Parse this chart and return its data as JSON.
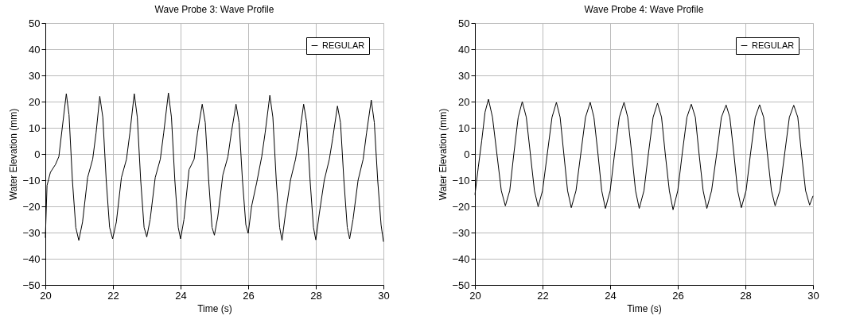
{
  "chart_data": [
    {
      "type": "line",
      "title": "Wave Probe 3: Wave Profile",
      "xlabel": "Time (s)",
      "ylabel": "Water Elevation (mm)",
      "xlim": [
        20,
        30
      ],
      "ylim": [
        -50,
        50
      ],
      "xticks": [
        20,
        22,
        24,
        26,
        28,
        30
      ],
      "yticks": [
        -50,
        -40,
        -30,
        -20,
        -10,
        0,
        10,
        20,
        30,
        40,
        50
      ],
      "grid": true,
      "legend": "top right",
      "series": [
        {
          "name": "REGULAR",
          "color": "#000000",
          "x": [
            20.0,
            20.05,
            20.15,
            20.3,
            20.4,
            20.5,
            20.62,
            20.7,
            20.8,
            20.9,
            20.99,
            21.1,
            21.25,
            21.4,
            21.5,
            21.61,
            21.7,
            21.8,
            21.9,
            21.99,
            22.1,
            22.25,
            22.4,
            22.5,
            22.63,
            22.72,
            22.82,
            22.92,
            23.0,
            23.1,
            23.25,
            23.4,
            23.5,
            23.64,
            23.73,
            23.83,
            23.93,
            24.0,
            24.1,
            24.25,
            24.4,
            24.5,
            24.64,
            24.73,
            24.83,
            24.93,
            25.0,
            25.1,
            25.25,
            25.4,
            25.5,
            25.64,
            25.73,
            25.83,
            25.93,
            26.0,
            26.1,
            26.25,
            26.4,
            26.5,
            26.64,
            26.73,
            26.83,
            26.93,
            27.0,
            27.1,
            27.25,
            27.4,
            27.5,
            27.64,
            27.73,
            27.83,
            27.93,
            28.0,
            28.1,
            28.25,
            28.4,
            28.5,
            28.64,
            28.73,
            28.83,
            28.93,
            29.0,
            29.1,
            29.25,
            29.4,
            29.5,
            29.64,
            29.73,
            29.83,
            29.93,
            30.0
          ],
          "values": [
            -32,
            -12,
            -7,
            -4,
            -1,
            10,
            23,
            15,
            -10,
            -28,
            -33,
            -26,
            -9,
            -2,
            8,
            22,
            14,
            -10,
            -28,
            -32.4,
            -26,
            -9,
            -2,
            8,
            23,
            14,
            -10,
            -28,
            -31.7,
            -25,
            -9,
            -2,
            8,
            23.3,
            14,
            -10,
            -28,
            -32.4,
            -25,
            -6,
            -2,
            8,
            19,
            12,
            -10,
            -28,
            -31,
            -24,
            -8,
            -1,
            8,
            19,
            12,
            -10,
            -27,
            -30.3,
            -20,
            -11,
            -1,
            8,
            22.4,
            14,
            -10,
            -28,
            -33,
            -23,
            -10,
            -2,
            6,
            19,
            12,
            -10,
            -28,
            -32.8,
            -23,
            -10,
            -2,
            6,
            18.3,
            12,
            -10,
            -28,
            -32.4,
            -25,
            -10,
            -2,
            8,
            20.6,
            12,
            -10,
            -27,
            -33.5
          ]
        }
      ]
    },
    {
      "type": "line",
      "title": "Wave Probe 4: Wave Profile",
      "xlabel": "Time (s)",
      "ylabel": "Water Elevation (mm)",
      "xlim": [
        20,
        30
      ],
      "ylim": [
        -50,
        50
      ],
      "xticks": [
        20,
        22,
        24,
        26,
        28,
        30
      ],
      "yticks": [
        -50,
        -40,
        -30,
        -20,
        -10,
        0,
        10,
        20,
        30,
        40,
        50
      ],
      "grid": true,
      "legend": "top right",
      "series": [
        {
          "name": "REGULAR",
          "color": "#000000",
          "x": [
            20.0,
            20.1,
            20.2,
            20.3,
            20.4,
            20.52,
            20.65,
            20.78,
            20.9,
            21.03,
            21.15,
            21.28,
            21.4,
            21.52,
            21.64,
            21.76,
            21.87,
            22.0,
            22.14,
            22.28,
            22.41,
            22.52,
            22.63,
            22.74,
            22.85,
            22.99,
            23.13,
            23.27,
            23.41,
            23.52,
            23.64,
            23.75,
            23.86,
            24.0,
            24.13,
            24.27,
            24.41,
            24.52,
            24.64,
            24.75,
            24.86,
            25.0,
            25.13,
            25.27,
            25.4,
            25.52,
            25.63,
            25.75,
            25.86,
            26.0,
            26.13,
            26.27,
            26.4,
            26.52,
            26.63,
            26.75,
            26.86,
            27.0,
            27.15,
            27.29,
            27.43,
            27.54,
            27.66,
            27.77,
            27.88,
            28.02,
            28.15,
            28.29,
            28.42,
            28.54,
            28.65,
            28.77,
            28.88,
            29.02,
            29.16,
            29.3,
            29.43,
            29.55,
            29.66,
            29.78,
            29.9,
            30.0
          ],
          "values": [
            -15.6,
            -5,
            5,
            16,
            20.9,
            14,
            0,
            -14,
            -19.8,
            -14,
            0,
            14,
            20.0,
            14,
            0,
            -14,
            -20.1,
            -14,
            0,
            14,
            19.7,
            14,
            0,
            -14,
            -20.5,
            -14,
            0,
            14,
            19.7,
            14,
            0,
            -14,
            -20.8,
            -14,
            0,
            14,
            19.7,
            14,
            0,
            -14,
            -20.8,
            -14,
            0,
            14,
            19.4,
            14,
            0,
            -14,
            -21.3,
            -14,
            0,
            14,
            19,
            14,
            0,
            -14,
            -20.8,
            -14,
            0,
            14,
            18.7,
            14,
            0,
            -14,
            -20.5,
            -14,
            0,
            14,
            18.8,
            14,
            0,
            -14,
            -19.8,
            -14,
            0,
            14,
            18.6,
            14,
            0,
            -14,
            -19.5,
            -16
          ]
        }
      ]
    }
  ]
}
